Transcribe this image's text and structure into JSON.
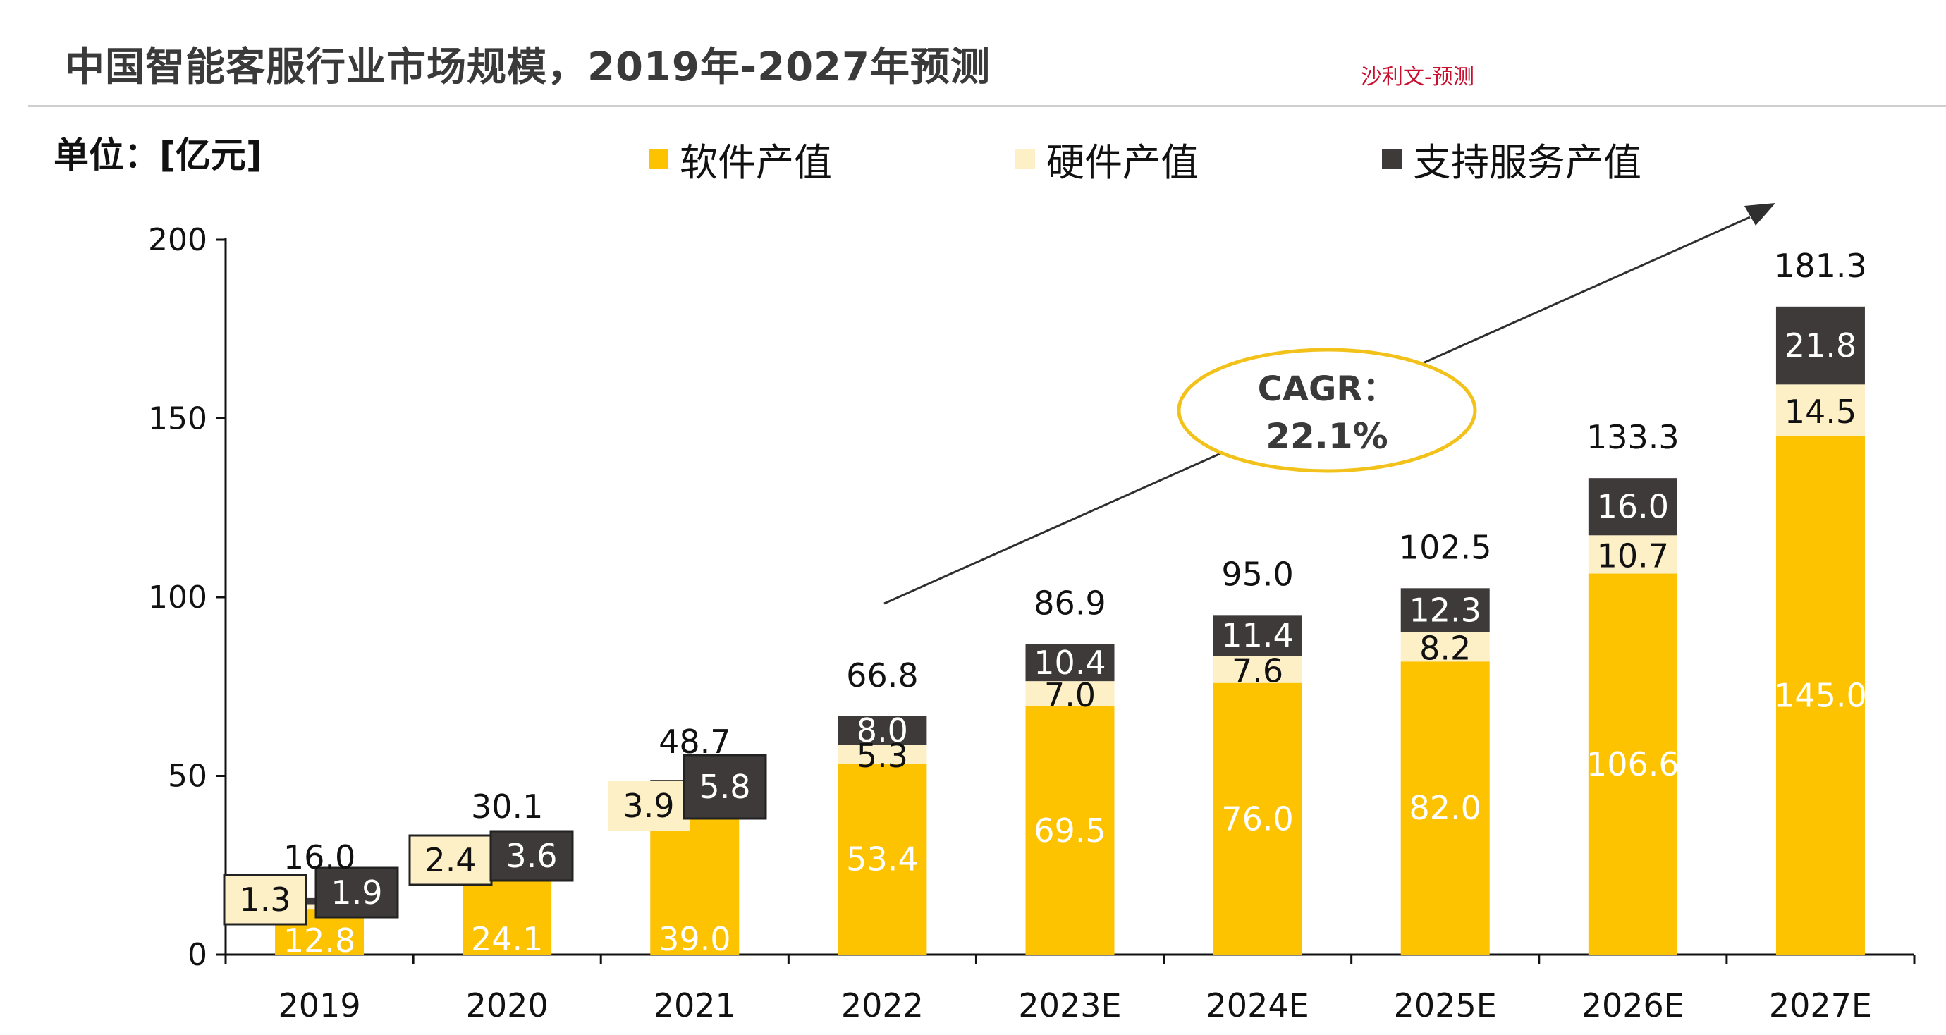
{
  "header": {
    "title": "中国智能客服行业市场规模，2019年-2027年预测",
    "source_note": "沙利文-预测",
    "unit": "单位：[亿元]"
  },
  "colors": {
    "software": "#FDC300",
    "hardware": "#FDEFC6",
    "service": "#3E3A39",
    "cagr_ellipse": "#F2C21B",
    "arrow": "#2f2f2f",
    "axis": "#111111"
  },
  "chart_data": {
    "type": "bar",
    "stacked": true,
    "title": "中国智能客服行业市场规模，2019年-2027年预测",
    "xlabel": "",
    "ylabel": "单位：[亿元]",
    "ylim": [
      0,
      200
    ],
    "yticks": [
      0,
      50,
      100,
      150,
      200
    ],
    "ytick_labels": [
      "0",
      "50",
      "100",
      "150",
      "200"
    ],
    "legend_position": "top",
    "categories": [
      "2019",
      "2020",
      "2021",
      "2022",
      "2023E",
      "2024E",
      "2025E",
      "2026E",
      "2027E"
    ],
    "series": [
      {
        "name": "软件产值",
        "color": "#FDC300",
        "values": [
          12.8,
          24.1,
          39.0,
          53.4,
          69.5,
          76.0,
          82.0,
          106.6,
          145.0
        ],
        "labels": [
          "12.8",
          "24.1",
          "39.0",
          "53.4",
          "69.5",
          "76.0",
          "82.0",
          "106.6",
          "145.0"
        ]
      },
      {
        "name": "硬件产值",
        "color": "#FDEFC6",
        "values": [
          1.3,
          2.4,
          3.9,
          5.3,
          7.0,
          7.6,
          8.2,
          10.7,
          14.5
        ],
        "labels": [
          "1.3",
          "2.4",
          "3.9",
          "5.3",
          "7.0",
          "7.6",
          "8.2",
          "10.7",
          "14.5"
        ]
      },
      {
        "name": "支持服务产值",
        "color": "#3E3A39",
        "values": [
          1.9,
          3.6,
          5.8,
          8.0,
          10.4,
          11.4,
          12.3,
          16.0,
          21.8
        ],
        "labels": [
          "1.9",
          "3.6",
          "5.8",
          "8.0",
          "10.4",
          "11.4",
          "12.3",
          "16.0",
          "21.8"
        ]
      }
    ],
    "totals": [
      16.0,
      30.1,
      48.7,
      66.8,
      86.9,
      95.0,
      102.5,
      133.3,
      181.3
    ],
    "total_labels": [
      "16.0",
      "30.1",
      "48.7",
      "66.8",
      "86.9",
      "95.0",
      "102.5",
      "133.3",
      "181.3"
    ],
    "annotation": {
      "label": "CAGR：",
      "value": "22.1%"
    }
  }
}
